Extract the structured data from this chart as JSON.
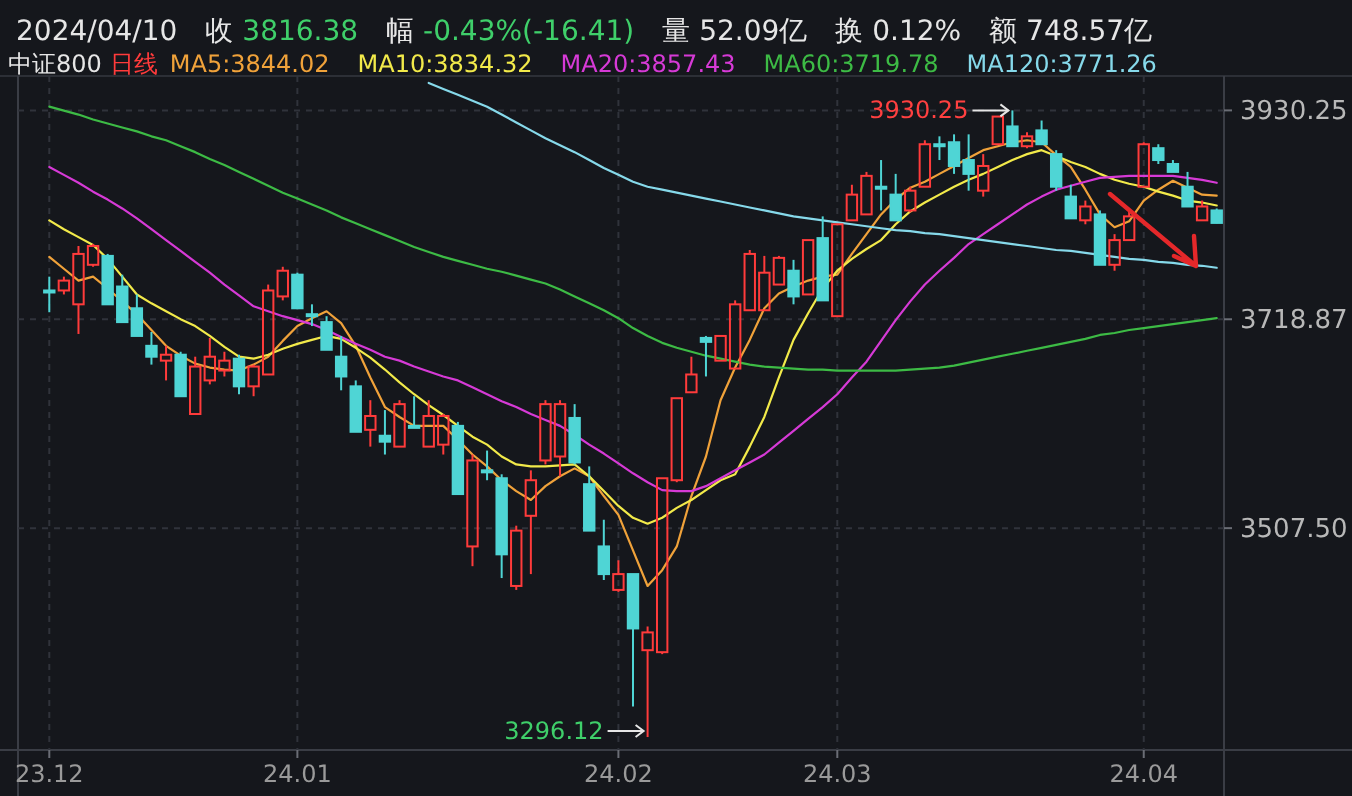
{
  "chart_data": {
    "type": "candlestick",
    "title": "2024/04/10",
    "legend_title": "中证800",
    "legend": "top left",
    "grid": true,
    "annotations": [
      "收 3816.38",
      "幅 -0.43%(-16.41)",
      "量 52.09亿",
      "换 0.12%",
      "额 748.57亿",
      "日线",
      "3930.25",
      "3296.12"
    ],
    "categories": [
      "23.12",
      null,
      null,
      null,
      null,
      null,
      null,
      null,
      null,
      null,
      null,
      null,
      null,
      null,
      null,
      null,
      null,
      "24.01",
      null,
      null,
      null,
      null,
      null,
      null,
      null,
      null,
      null,
      null,
      null,
      null,
      null,
      null,
      null,
      null,
      null,
      null,
      null,
      null,
      null,
      "24.02",
      null,
      null,
      null,
      null,
      null,
      null,
      null,
      null,
      null,
      null,
      null,
      null,
      null,
      null,
      "24.03",
      null,
      null,
      null,
      null,
      null,
      null,
      null,
      null,
      null,
      null,
      null,
      null,
      null,
      null,
      null,
      null,
      null,
      null,
      null,
      null,
      "24.04",
      null,
      null,
      null,
      null,
      null
    ],
    "ylim": [
      3283,
      3961
    ],
    "yticks": [
      {
        "value": 3930.25,
        "label": "3930.25"
      },
      {
        "value": 3718.87,
        "label": "3718.87"
      },
      {
        "value": 3507.5,
        "label": "3507.50"
      }
    ],
    "ohlc": [
      [
        3748,
        3762,
        3726,
        3748
      ],
      [
        3748,
        3762,
        3744,
        3758
      ],
      [
        3734,
        3793,
        3704,
        3785
      ],
      [
        3774,
        3795,
        3772,
        3793
      ],
      [
        3783,
        3785,
        3734,
        3734
      ],
      [
        3752,
        3764,
        3716,
        3716
      ],
      [
        3730,
        3744,
        3702,
        3702
      ],
      [
        3692,
        3706,
        3673,
        3681
      ],
      [
        3677,
        3692,
        3657,
        3683
      ],
      [
        3683,
        3686,
        3641,
        3641
      ],
      [
        3623,
        3681,
        3623,
        3671
      ],
      [
        3657,
        3700,
        3653,
        3681
      ],
      [
        3667,
        3686,
        3661,
        3677
      ],
      [
        3679,
        3683,
        3643,
        3651
      ],
      [
        3651,
        3673,
        3641,
        3671
      ],
      [
        3663,
        3754,
        3663,
        3748
      ],
      [
        3742,
        3772,
        3738,
        3768
      ],
      [
        3764,
        3766,
        3730,
        3730
      ],
      [
        3724,
        3734,
        3712,
        3724
      ],
      [
        3716,
        3722,
        3688,
        3688
      ],
      [
        3681,
        3702,
        3647,
        3661
      ],
      [
        3651,
        3657,
        3605,
        3605
      ],
      [
        3607,
        3637,
        3590,
        3621
      ],
      [
        3601,
        3627,
        3582,
        3595
      ],
      [
        3590,
        3637,
        3590,
        3633
      ],
      [
        3611,
        3641,
        3609,
        3611
      ],
      [
        3590,
        3637,
        3590,
        3621
      ],
      [
        3592,
        3623,
        3582,
        3621
      ],
      [
        3611,
        3615,
        3542,
        3542
      ],
      [
        3489,
        3582,
        3469,
        3576
      ],
      [
        3566,
        3586,
        3556,
        3566
      ],
      [
        3558,
        3562,
        3457,
        3481
      ],
      [
        3449,
        3510,
        3445,
        3505
      ],
      [
        3520,
        3566,
        3461,
        3556
      ],
      [
        3576,
        3637,
        3572,
        3633
      ],
      [
        3580,
        3637,
        3560,
        3633
      ],
      [
        3619,
        3633,
        3572,
        3574
      ],
      [
        3552,
        3570,
        3505,
        3505
      ],
      [
        3489,
        3516,
        3455,
        3461
      ],
      [
        3445,
        3475,
        3443,
        3461
      ],
      [
        3461,
        3461,
        3327,
        3406
      ],
      [
        3384,
        3408,
        3296.12,
        3402
      ],
      [
        3382,
        3558,
        3380,
        3558
      ],
      [
        3556,
        3639,
        3554,
        3639
      ],
      [
        3645,
        3681,
        3645,
        3663
      ],
      [
        3700,
        3702,
        3661,
        3696
      ],
      [
        3677,
        3702,
        3677,
        3702
      ],
      [
        3669,
        3738,
        3669,
        3734
      ],
      [
        3728,
        3789,
        3728,
        3785
      ],
      [
        3728,
        3783,
        3728,
        3766
      ],
      [
        3754,
        3783,
        3754,
        3781
      ],
      [
        3768,
        3779,
        3734,
        3742
      ],
      [
        3744,
        3799,
        3744,
        3799
      ],
      [
        3801,
        3823,
        3738,
        3738
      ],
      [
        3722,
        3815,
        3722,
        3815
      ],
      [
        3819,
        3855,
        3819,
        3845
      ],
      [
        3825,
        3868,
        3825,
        3864
      ],
      [
        3853,
        3880,
        3829,
        3853
      ],
      [
        3845,
        3866,
        3819,
        3819
      ],
      [
        3829,
        3853,
        3827,
        3849
      ],
      [
        3853,
        3900,
        3853,
        3896
      ],
      [
        3896,
        3904,
        3880,
        3896
      ],
      [
        3898,
        3906,
        3866,
        3874
      ],
      [
        3880,
        3906,
        3849,
        3866
      ],
      [
        3849,
        3886,
        3843,
        3874
      ],
      [
        3896,
        3924,
        3896,
        3924
      ],
      [
        3914,
        3930.25,
        3894,
        3894
      ],
      [
        3894,
        3908,
        3892,
        3904
      ],
      [
        3910,
        3920,
        3896,
        3896
      ],
      [
        3886,
        3890,
        3849,
        3853
      ],
      [
        3843,
        3855,
        3821,
        3821
      ],
      [
        3819,
        3839,
        3815,
        3833
      ],
      [
        3825,
        3829,
        3774,
        3774
      ],
      [
        3774,
        3805,
        3768,
        3799
      ],
      [
        3799,
        3829,
        3799,
        3823
      ],
      [
        3853,
        3898,
        3853,
        3896
      ],
      [
        3892,
        3896,
        3876,
        3880
      ],
      [
        3876,
        3880,
        3868,
        3868
      ],
      [
        3853,
        3868,
        3833,
        3833
      ],
      [
        3819,
        3839,
        3819,
        3833
      ],
      [
        3829,
        3831,
        3816,
        3816.38
      ]
    ],
    "colors": [
      "#4fd5d5",
      "#ff3b3b",
      "#ff3b3b",
      "#ff3b3b",
      "#4fd5d5",
      "#4fd5d5",
      "#4fd5d5",
      "#4fd5d5",
      "#ff3b3b",
      "#4fd5d5",
      "#ff3b3b",
      "#ff3b3b",
      "#ff3b3b",
      "#4fd5d5",
      "#ff3b3b",
      "#ff3b3b",
      "#ff3b3b",
      "#4fd5d5",
      "#4fd5d5",
      "#4fd5d5",
      "#4fd5d5",
      "#4fd5d5",
      "#ff3b3b",
      "#4fd5d5",
      "#ff3b3b",
      "#4fd5d5",
      "#ff3b3b",
      "#ff3b3b",
      "#4fd5d5",
      "#ff3b3b",
      "#4fd5d5",
      "#4fd5d5",
      "#ff3b3b",
      "#ff3b3b",
      "#ff3b3b",
      "#ff3b3b",
      "#4fd5d5",
      "#4fd5d5",
      "#4fd5d5",
      "#ff3b3b",
      "#4fd5d5",
      "#ff3b3b",
      "#ff3b3b",
      "#ff3b3b",
      "#ff3b3b",
      "#4fd5d5",
      "#ff3b3b",
      "#ff3b3b",
      "#ff3b3b",
      "#ff3b3b",
      "#ff3b3b",
      "#4fd5d5",
      "#ff3b3b",
      "#4fd5d5",
      "#ff3b3b",
      "#ff3b3b",
      "#ff3b3b",
      "#4fd5d5",
      "#4fd5d5",
      "#ff3b3b",
      "#ff3b3b",
      "#4fd5d5",
      "#4fd5d5",
      "#4fd5d5",
      "#ff3b3b",
      "#ff3b3b",
      "#4fd5d5",
      "#ff3b3b",
      "#4fd5d5",
      "#4fd5d5",
      "#4fd5d5",
      "#ff3b3b",
      "#4fd5d5",
      "#ff3b3b",
      "#ff3b3b",
      "#ff3b3b",
      "#4fd5d5",
      "#4fd5d5",
      "#4fd5d5",
      "#ff3b3b",
      "#4fd5d5"
    ],
    "series": [
      {
        "name": "MA5:3844.02",
        "type": "line",
        "color": "#f0a23a",
        "values": [
          3782,
          3770,
          3758,
          3762,
          3750,
          3737,
          3724,
          3708,
          3692,
          3682,
          3674,
          3670,
          3668,
          3667,
          3673,
          3681,
          3697,
          3712,
          3720,
          3727,
          3715,
          3692,
          3660,
          3630,
          3620,
          3611,
          3611,
          3611,
          3597,
          3582,
          3570,
          3556,
          3545,
          3536,
          3550,
          3560,
          3568,
          3560,
          3540,
          3521,
          3485,
          3449,
          3465,
          3489,
          3540,
          3580,
          3637,
          3670,
          3698,
          3730,
          3745,
          3752,
          3758,
          3762,
          3764,
          3785,
          3805,
          3825,
          3840,
          3852,
          3858,
          3866,
          3874,
          3882,
          3890,
          3894,
          3898,
          3900,
          3898,
          3885,
          3873,
          3850,
          3825,
          3812,
          3818,
          3839,
          3850,
          3859,
          3852,
          3845,
          3844
        ]
      },
      {
        "name": "MA10:3834.32",
        "type": "line",
        "color": "#f2ea4a",
        "values": [
          3819,
          3810,
          3802,
          3794,
          3780,
          3762,
          3744,
          3735,
          3727,
          3719,
          3712,
          3702,
          3691,
          3681,
          3679,
          3683,
          3689,
          3694,
          3698,
          3702,
          3699,
          3690,
          3680,
          3668,
          3655,
          3643,
          3632,
          3622,
          3611,
          3600,
          3592,
          3580,
          3572,
          3570,
          3570,
          3571,
          3572,
          3560,
          3545,
          3530,
          3518,
          3512,
          3518,
          3528,
          3536,
          3546,
          3556,
          3562,
          3590,
          3620,
          3660,
          3698,
          3725,
          3750,
          3768,
          3780,
          3790,
          3799,
          3815,
          3828,
          3837,
          3845,
          3853,
          3860,
          3866,
          3873,
          3880,
          3886,
          3890,
          3884,
          3878,
          3873,
          3866,
          3860,
          3856,
          3853,
          3848,
          3844,
          3839,
          3837,
          3834
        ]
      },
      {
        "name": "MA20:3857.43",
        "type": "line",
        "color": "#d63ad6",
        "values": [
          3873,
          3865,
          3857,
          3848,
          3840,
          3831,
          3821,
          3810,
          3799,
          3788,
          3777,
          3766,
          3754,
          3743,
          3732,
          3727,
          3722,
          3718,
          3714,
          3708,
          3701,
          3694,
          3688,
          3681,
          3677,
          3671,
          3666,
          3661,
          3657,
          3650,
          3643,
          3636,
          3630,
          3623,
          3617,
          3611,
          3602,
          3592,
          3583,
          3573,
          3563,
          3554,
          3546,
          3545,
          3545,
          3550,
          3558,
          3566,
          3574,
          3582,
          3594,
          3606,
          3618,
          3630,
          3643,
          3660,
          3676,
          3697,
          3718,
          3737,
          3754,
          3768,
          3781,
          3795,
          3805,
          3815,
          3825,
          3835,
          3843,
          3850,
          3854,
          3858,
          3862,
          3863,
          3864,
          3864,
          3864,
          3864,
          3862,
          3860,
          3857
        ]
      },
      {
        "name": "MA60:3719.78",
        "type": "line",
        "color": "#3dbb45",
        "values": [
          3934,
          3930,
          3926,
          3921,
          3917,
          3913,
          3909,
          3904,
          3900,
          3894,
          3888,
          3881,
          3875,
          3868,
          3861,
          3854,
          3847,
          3841,
          3835,
          3829,
          3822,
          3816,
          3810,
          3804,
          3798,
          3792,
          3787,
          3782,
          3778,
          3774,
          3770,
          3767,
          3763,
          3759,
          3755,
          3749,
          3742,
          3735,
          3728,
          3720,
          3710,
          3702,
          3695,
          3690,
          3686,
          3682,
          3679,
          3676,
          3673,
          3671,
          3670,
          3669,
          3668,
          3668,
          3667,
          3667,
          3667,
          3667,
          3667,
          3668,
          3669,
          3670,
          3672,
          3675,
          3678,
          3681,
          3684,
          3687,
          3690,
          3693,
          3696,
          3699,
          3703,
          3705,
          3708,
          3710,
          3712,
          3714,
          3716,
          3718,
          3720
        ]
      },
      {
        "name": "MA120:3771.26",
        "type": "line",
        "color": "#86d9ea",
        "values": [
          null,
          null,
          null,
          null,
          null,
          null,
          null,
          null,
          null,
          null,
          null,
          null,
          null,
          null,
          null,
          null,
          null,
          null,
          null,
          null,
          null,
          null,
          null,
          null,
          null,
          null,
          3958,
          3952,
          3946,
          3940,
          3934,
          3926,
          3918,
          3910,
          3902,
          3895,
          3888,
          3880,
          3872,
          3865,
          3858,
          3853,
          3850,
          3847,
          3844,
          3841,
          3838,
          3835,
          3832,
          3829,
          3826,
          3823,
          3821,
          3819,
          3817,
          3815,
          3813,
          3811,
          3809,
          3808,
          3806,
          3805,
          3803,
          3801,
          3799,
          3797,
          3795,
          3793,
          3791,
          3789,
          3788,
          3786,
          3784,
          3782,
          3780,
          3779,
          3777,
          3776,
          3774,
          3773,
          3771
        ]
      }
    ]
  }
}
